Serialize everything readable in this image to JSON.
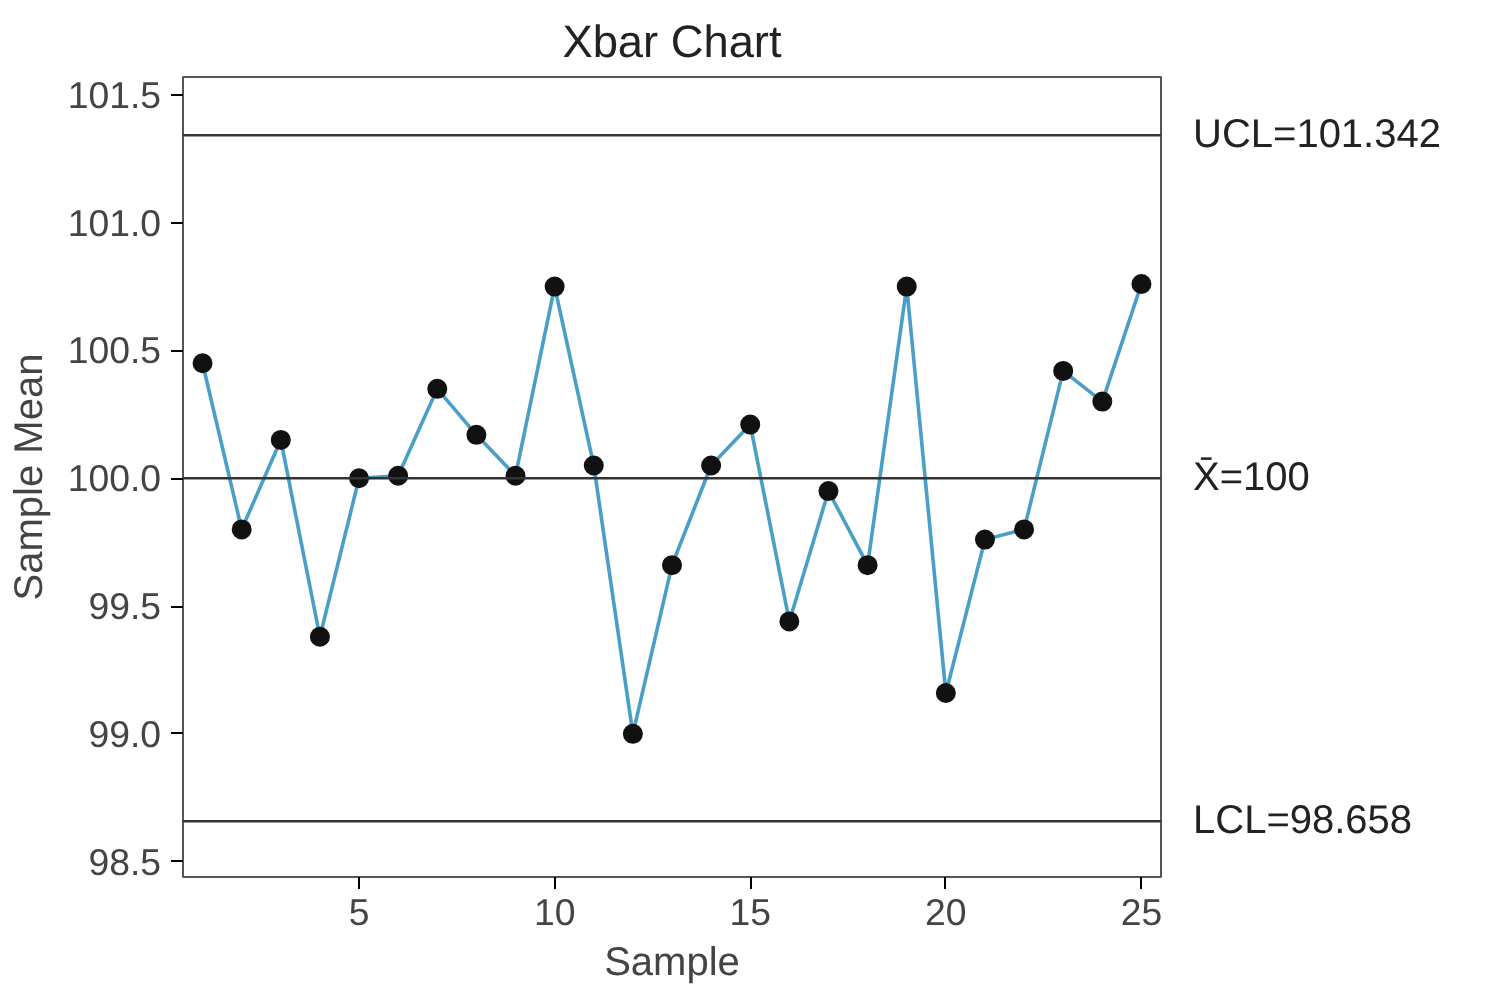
{
  "chart_data": {
    "type": "line",
    "title": "Xbar Chart",
    "xlabel": "Sample",
    "ylabel": "Sample Mean",
    "x": [
      1,
      2,
      3,
      4,
      5,
      6,
      7,
      8,
      9,
      10,
      11,
      12,
      13,
      14,
      15,
      16,
      17,
      18,
      19,
      20,
      21,
      22,
      23,
      24,
      25
    ],
    "series": [
      {
        "color": "#4a9fc8",
        "values": [
          100.45,
          99.8,
          100.15,
          99.38,
          100.0,
          100.01,
          100.35,
          100.17,
          100.01,
          100.75,
          100.05,
          99.0,
          99.66,
          100.05,
          100.21,
          99.44,
          99.95,
          99.66,
          100.75,
          99.16,
          99.76,
          99.8,
          100.42,
          100.3,
          100.76
        ]
      }
    ],
    "marker": "circle",
    "line_style": "solid",
    "grid": false,
    "xlim": [
      0.5,
      25.5
    ],
    "ylim": [
      98.44,
      101.57
    ],
    "xticks": [
      5,
      10,
      15,
      20,
      25
    ],
    "yticks": [
      {
        "value": 98.5,
        "label": "98.5"
      },
      {
        "value": 99.0,
        "label": "99.0"
      },
      {
        "value": 99.5,
        "label": "99.5"
      },
      {
        "value": 100.0,
        "label": "100.0"
      },
      {
        "value": 100.5,
        "label": "100.5"
      },
      {
        "value": 101.0,
        "label": "101.0"
      },
      {
        "value": 101.5,
        "label": "101.5"
      }
    ],
    "ref_lines": [
      {
        "axis": "y",
        "value": 101.342,
        "label": "UCL=101.342",
        "color": "#333333"
      },
      {
        "axis": "y",
        "value": 100,
        "label": "X̄=100",
        "color": "#333333"
      },
      {
        "axis": "y",
        "value": 98.658,
        "label": "LCL=98.658",
        "color": "#333333"
      }
    ]
  }
}
